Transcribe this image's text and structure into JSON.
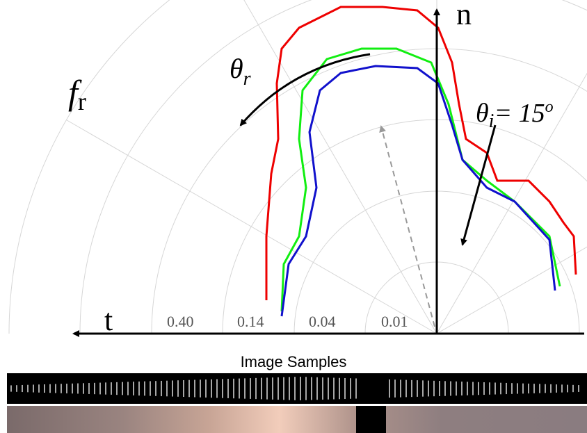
{
  "figure": {
    "normal_label": "n",
    "tangent_label": "t",
    "brdf_label": "f",
    "brdf_subscript": "r",
    "theta_r": "θ",
    "theta_r_subscript": "r",
    "theta_i": "θ",
    "theta_i_subscript": "i",
    "theta_i_value": "= 15",
    "theta_i_superscript": "o",
    "ring_labels": [
      "0.40",
      "0.14",
      "0.04",
      "0.01"
    ],
    "samples_title": "Image Samples"
  }
}
